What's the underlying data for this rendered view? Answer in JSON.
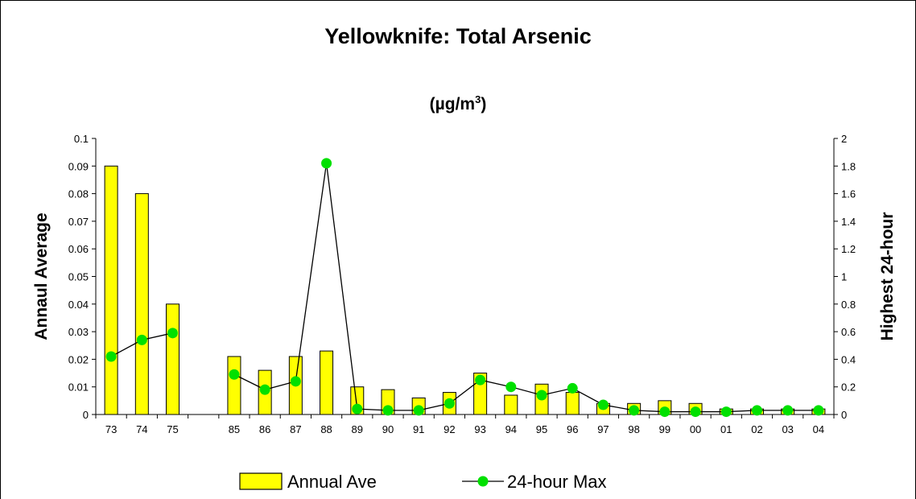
{
  "chart_data": {
    "type": "bar",
    "title": "Yellowknife: Total Arsenic",
    "subtitle_prefix": "(µg/m",
    "subtitle_sup": "3",
    "subtitle_suffix": ")",
    "ylabel": "Annaul Average",
    "y2label": "Highest 24-hour",
    "ylim": [
      0,
      0.1
    ],
    "y2lim": [
      0,
      2
    ],
    "yticks": [
      "0",
      "0.01",
      "0.02",
      "0.03",
      "0.04",
      "0.05",
      "0.06",
      "0.07",
      "0.08",
      "0.09",
      "0.1"
    ],
    "y2ticks": [
      "0",
      "0.2",
      "0.4",
      "0.6",
      "0.8",
      "1",
      "1.2",
      "1.4",
      "1.6",
      "1.8",
      "2"
    ],
    "categories": [
      "73",
      "74",
      "75",
      "",
      "85",
      "86",
      "87",
      "88",
      "89",
      "90",
      "91",
      "92",
      "93",
      "94",
      "95",
      "96",
      "97",
      "98",
      "99",
      "00",
      "01",
      "02",
      "03",
      "04"
    ],
    "series": [
      {
        "name": "Annual Ave",
        "type": "bar",
        "axis": "left",
        "color": "#ffff00",
        "values": [
          0.09,
          0.08,
          0.04,
          null,
          0.021,
          0.016,
          0.021,
          0.023,
          0.01,
          0.009,
          0.006,
          0.008,
          0.015,
          0.007,
          0.011,
          0.008,
          0.004,
          0.004,
          0.005,
          0.004,
          0.002,
          0.002,
          0.002,
          0.002
        ]
      },
      {
        "name": "24-hour Max",
        "type": "line",
        "axis": "right",
        "color": "#00e000",
        "values": [
          0.42,
          0.54,
          0.59,
          null,
          0.29,
          0.18,
          0.24,
          1.82,
          0.04,
          0.03,
          0.03,
          0.08,
          0.25,
          0.2,
          0.14,
          0.19,
          0.07,
          0.03,
          0.02,
          0.02,
          0.02,
          0.03,
          0.03,
          0.03
        ]
      }
    ],
    "legend_position": "bottom",
    "grid": false
  }
}
